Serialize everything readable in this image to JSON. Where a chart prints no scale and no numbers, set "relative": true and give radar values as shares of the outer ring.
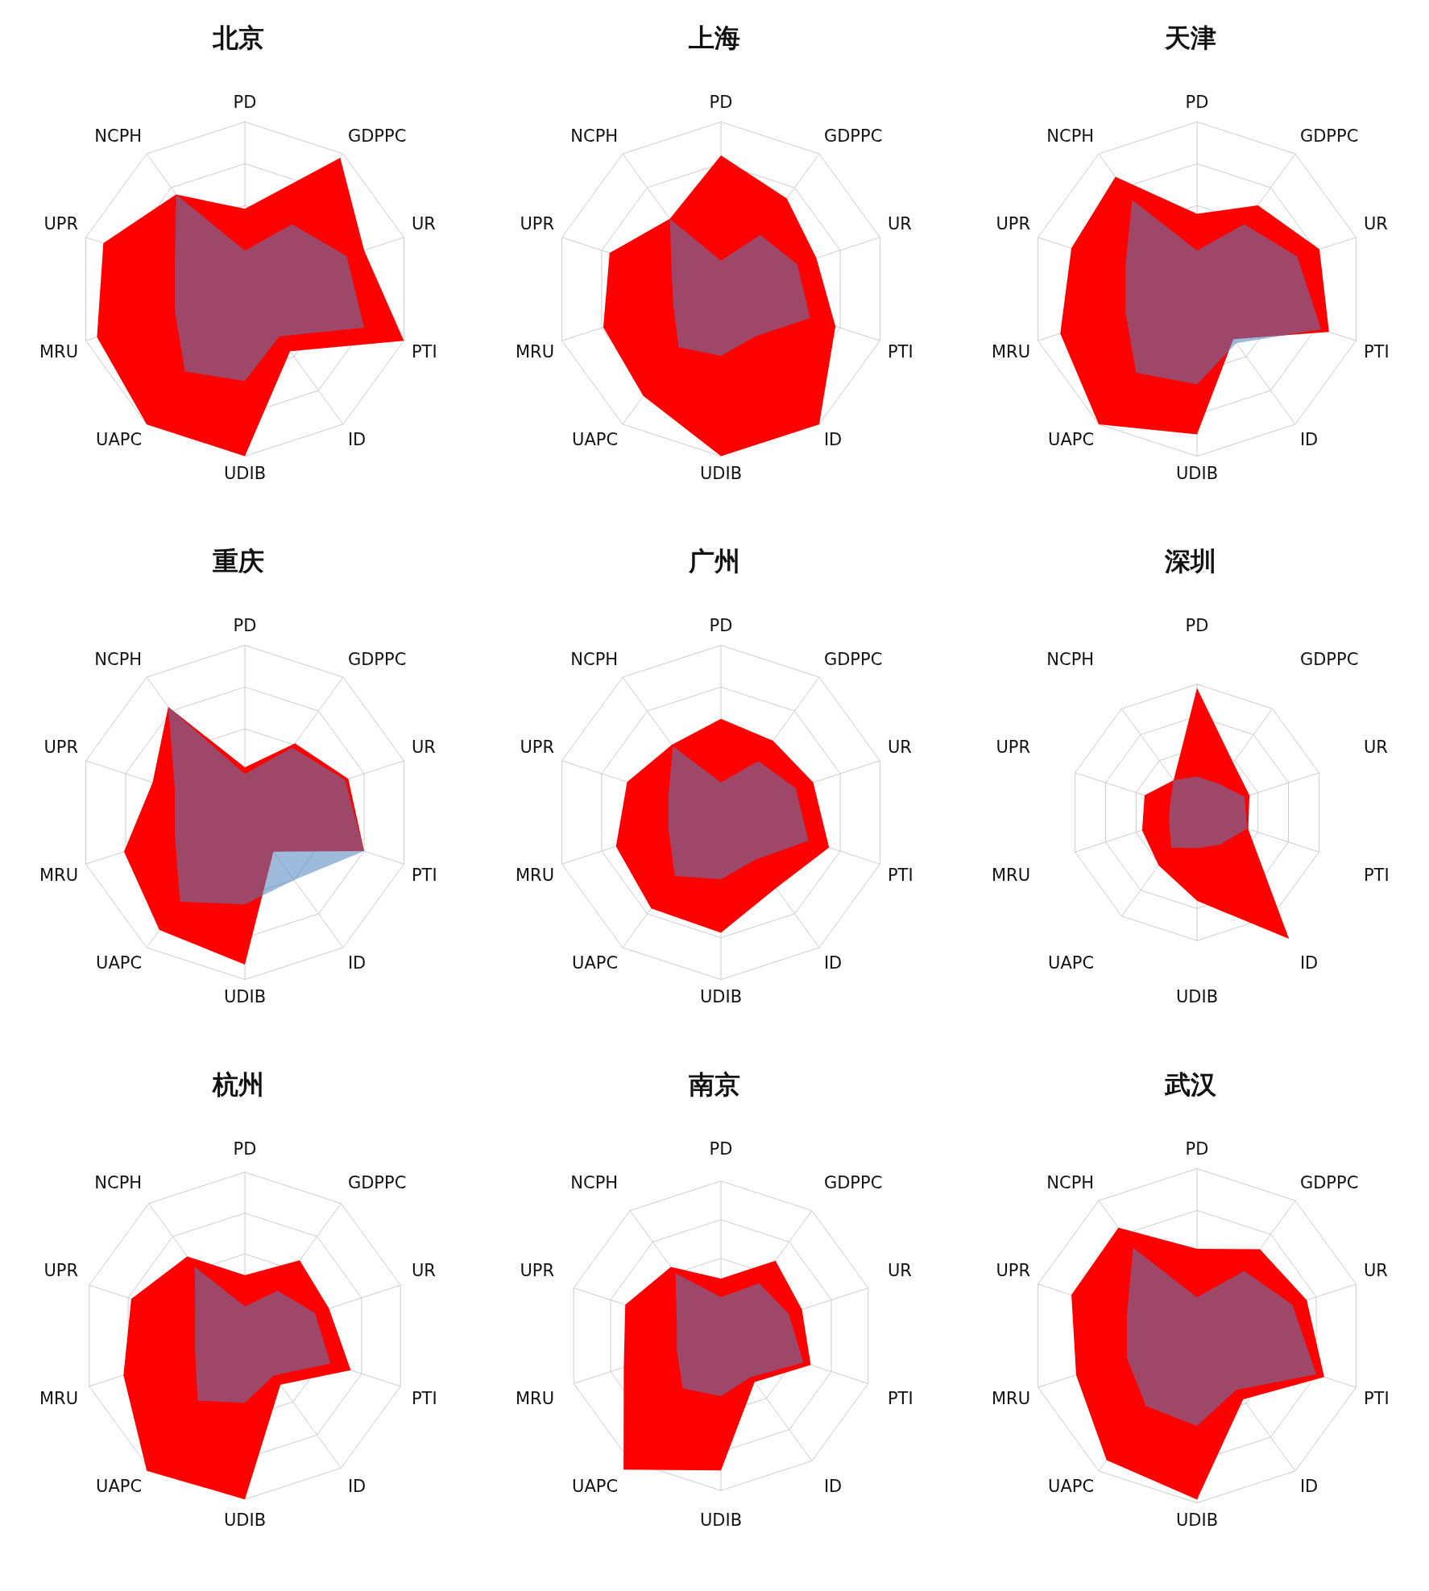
{
  "chart_data": [
    {
      "type": "radar",
      "title": "北京",
      "categories": [
        "PD",
        "GDPPC",
        "UR",
        "PTI",
        "ID",
        "UDIB",
        "UAPC",
        "MRU",
        "UPR",
        "NCPH"
      ],
      "relative": true,
      "grid": true,
      "marker": "none",
      "series": [
        {
          "color": "#ff0000",
          "values": [
            0.48,
            0.97,
            0.75,
            1.0,
            0.46,
            1.0,
            1.0,
            0.93,
            0.89,
            0.7
          ]
        },
        {
          "color": "#4f81bd",
          "values": [
            0.23,
            0.48,
            0.64,
            0.75,
            0.35,
            0.55,
            0.61,
            0.44,
            0.44,
            0.7
          ]
        }
      ]
    },
    {
      "type": "radar",
      "title": "上海",
      "categories": [
        "PD",
        "GDPPC",
        "UR",
        "PTI",
        "ID",
        "UDIB",
        "UAPC",
        "MRU",
        "UPR",
        "NCPH"
      ],
      "relative": true,
      "grid": true,
      "marker": "none",
      "series": [
        {
          "color": "#ff0000",
          "values": [
            0.8,
            0.67,
            0.6,
            0.72,
            1.0,
            1.0,
            0.79,
            0.74,
            0.7,
            0.52
          ]
        },
        {
          "color": "#4f81bd",
          "values": [
            0.17,
            0.4,
            0.48,
            0.56,
            0.35,
            0.4,
            0.43,
            0.3,
            0.31,
            0.52
          ]
        }
      ]
    },
    {
      "type": "radar",
      "title": "天津",
      "categories": [
        "PD",
        "GDPPC",
        "UR",
        "PTI",
        "ID",
        "UDIB",
        "UAPC",
        "MRU",
        "UPR",
        "NCPH"
      ],
      "relative": true,
      "grid": true,
      "marker": "none",
      "series": [
        {
          "color": "#ff0000",
          "values": [
            0.45,
            0.62,
            0.77,
            0.83,
            0.37,
            0.87,
            1.0,
            0.86,
            0.79,
            0.83
          ]
        },
        {
          "color": "#4f81bd",
          "values": [
            0.23,
            0.48,
            0.63,
            0.78,
            0.4,
            0.57,
            0.62,
            0.45,
            0.45,
            0.66
          ]
        }
      ]
    },
    {
      "type": "radar",
      "title": "重庆",
      "categories": [
        "PD",
        "GDPPC",
        "UR",
        "PTI",
        "ID",
        "UDIB",
        "UAPC",
        "MRU",
        "UPR",
        "NCPH"
      ],
      "relative": true,
      "grid": true,
      "marker": "none",
      "series": [
        {
          "color": "#ff0000",
          "values": [
            0.27,
            0.51,
            0.65,
            0.75,
            0.29,
            0.91,
            0.87,
            0.76,
            0.58,
            0.78
          ]
        },
        {
          "color": "#4f81bd",
          "values": [
            0.23,
            0.48,
            0.63,
            0.75,
            0.5,
            0.55,
            0.66,
            0.44,
            0.44,
            0.78
          ]
        }
      ]
    },
    {
      "type": "radar",
      "title": "广州",
      "categories": [
        "PD",
        "GDPPC",
        "UR",
        "PTI",
        "ID",
        "UDIB",
        "UAPC",
        "MRU",
        "UPR",
        "NCPH"
      ],
      "relative": true,
      "grid": true,
      "marker": "none",
      "series": [
        {
          "color": "#ff0000",
          "values": [
            0.56,
            0.53,
            0.58,
            0.68,
            0.56,
            0.72,
            0.71,
            0.66,
            0.59,
            0.5
          ]
        },
        {
          "color": "#4f81bd",
          "values": [
            0.18,
            0.38,
            0.47,
            0.55,
            0.35,
            0.4,
            0.47,
            0.33,
            0.33,
            0.49
          ]
        }
      ]
    },
    {
      "type": "radar",
      "title": "深圳",
      "categories": [
        "PD",
        "GDPPC",
        "UR",
        "PTI",
        "ID",
        "UDIB",
        "UAPC",
        "MRU",
        "UPR",
        "NCPH"
      ],
      "relative": true,
      "grid": true,
      "marker": "none",
      "series": [
        {
          "color": "#ff0000",
          "values": [
            0.97,
            0.48,
            0.43,
            0.42,
            1.22,
            0.69,
            0.51,
            0.45,
            0.43,
            0.31
          ]
        },
        {
          "color": "#4f81bd",
          "values": [
            0.28,
            0.28,
            0.39,
            0.41,
            0.31,
            0.28,
            0.34,
            0.23,
            0.22,
            0.31
          ]
        }
      ]
    },
    {
      "type": "radar",
      "title": "杭州",
      "categories": [
        "PD",
        "GDPPC",
        "UR",
        "PTI",
        "ID",
        "UDIB",
        "UAPC",
        "MRU",
        "UPR",
        "NCPH"
      ],
      "relative": true,
      "grid": true,
      "marker": "none",
      "series": [
        {
          "color": "#ff0000",
          "values": [
            0.37,
            0.57,
            0.54,
            0.68,
            0.37,
            1.0,
            1.02,
            0.78,
            0.73,
            0.6
          ]
        },
        {
          "color": "#4f81bd",
          "values": [
            0.18,
            0.34,
            0.45,
            0.55,
            0.3,
            0.41,
            0.49,
            0.32,
            0.32,
            0.52
          ]
        }
      ]
    },
    {
      "type": "radar",
      "title": "南京",
      "categories": [
        "PD",
        "GDPPC",
        "UR",
        "PTI",
        "ID",
        "UDIB",
        "UAPC",
        "MRU",
        "UPR",
        "NCPH"
      ],
      "relative": true,
      "grid": true,
      "marker": "none",
      "series": [
        {
          "color": "#ff0000",
          "values": [
            0.37,
            0.6,
            0.55,
            0.61,
            0.37,
            0.87,
            1.07,
            0.66,
            0.65,
            0.55
          ]
        },
        {
          "color": "#4f81bd",
          "values": [
            0.25,
            0.42,
            0.46,
            0.56,
            0.33,
            0.39,
            0.42,
            0.3,
            0.3,
            0.5
          ]
        }
      ]
    },
    {
      "type": "radar",
      "title": "武汉",
      "categories": [
        "PD",
        "GDPPC",
        "UR",
        "PTI",
        "ID",
        "UDIB",
        "UAPC",
        "MRU",
        "UPR",
        "NCPH"
      ],
      "relative": true,
      "grid": true,
      "marker": "none",
      "series": [
        {
          "color": "#ff0000",
          "values": [
            0.52,
            0.64,
            0.69,
            0.8,
            0.47,
            0.98,
            0.92,
            0.76,
            0.79,
            0.8
          ]
        },
        {
          "color": "#4f81bd",
          "values": [
            0.23,
            0.48,
            0.6,
            0.75,
            0.4,
            0.54,
            0.52,
            0.44,
            0.44,
            0.65
          ]
        }
      ]
    }
  ]
}
